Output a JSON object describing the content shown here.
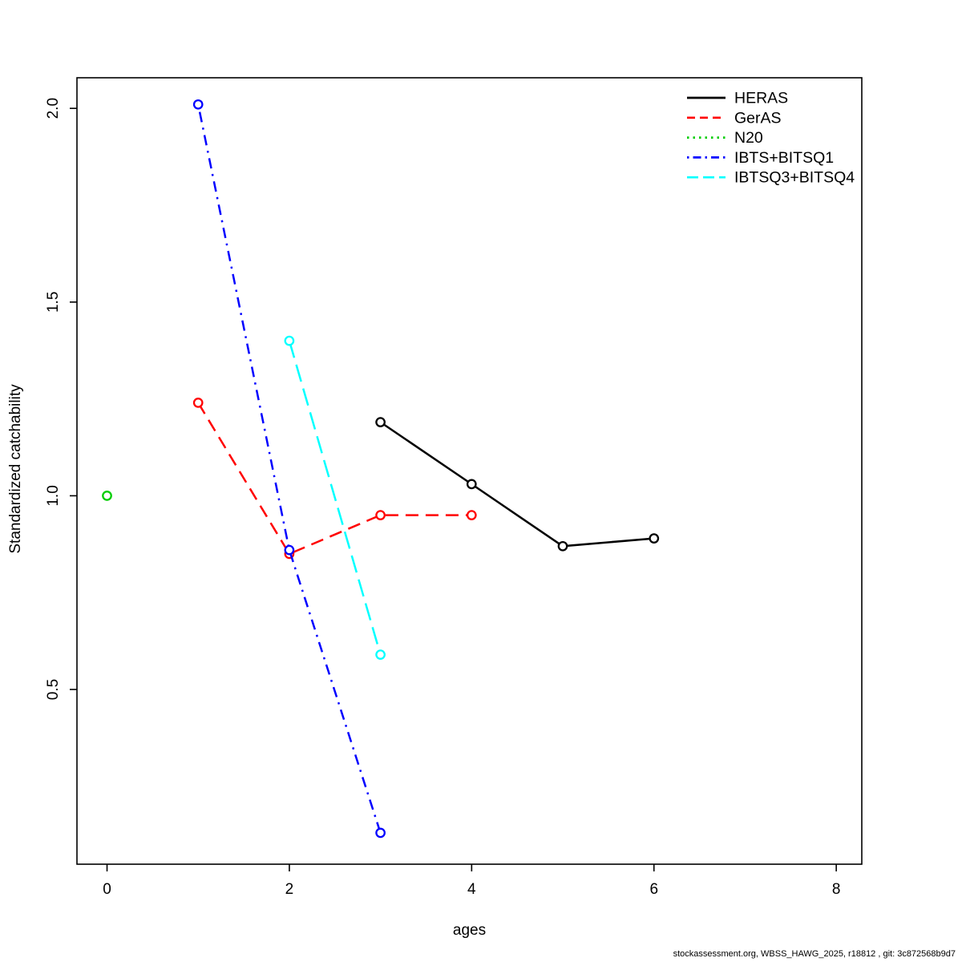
{
  "chart_data": {
    "type": "line",
    "title": "",
    "xlabel": "ages",
    "ylabel": "Standardized catchability",
    "xlim": [
      -0.33,
      8.28
    ],
    "ylim": [
      0.049,
      2.079
    ],
    "x_ticks": [
      0,
      2,
      4,
      6,
      8
    ],
    "x_tick_labels": [
      "0",
      "2",
      "4",
      "6",
      "8"
    ],
    "y_ticks": [
      0.5,
      1.0,
      1.5,
      2.0
    ],
    "y_tick_labels": [
      "0.5",
      "1.0",
      "1.5",
      "2.0"
    ],
    "grid": false,
    "legend_position": "top-right",
    "marker": "open-circle",
    "series": [
      {
        "name": "HERAS",
        "color": "#000000",
        "linestyle": "solid",
        "x": [
          3,
          4,
          5,
          6
        ],
        "y": [
          1.19,
          1.03,
          0.87,
          0.89
        ]
      },
      {
        "name": "GerAS",
        "color": "#ff0000",
        "linestyle": "dashed",
        "x": [
          1,
          2,
          3,
          4
        ],
        "y": [
          1.24,
          0.85,
          0.95,
          0.95
        ]
      },
      {
        "name": "N20",
        "color": "#00cd00",
        "linestyle": "dotted",
        "x": [
          0
        ],
        "y": [
          1.0
        ]
      },
      {
        "name": "IBTS+BITSQ1",
        "color": "#0000ff",
        "linestyle": "dotdash",
        "x": [
          1,
          2,
          3
        ],
        "y": [
          2.01,
          0.86,
          0.13
        ]
      },
      {
        "name": "IBTSQ3+BITSQ4",
        "color": "#00ffff",
        "linestyle": "longdash",
        "x": [
          2,
          3
        ],
        "y": [
          1.4,
          0.59
        ]
      }
    ]
  },
  "footer": {
    "text": "stockassessment.org, WBSS_HAWG_2025, r18812 , git: 3c872568b9d7"
  }
}
